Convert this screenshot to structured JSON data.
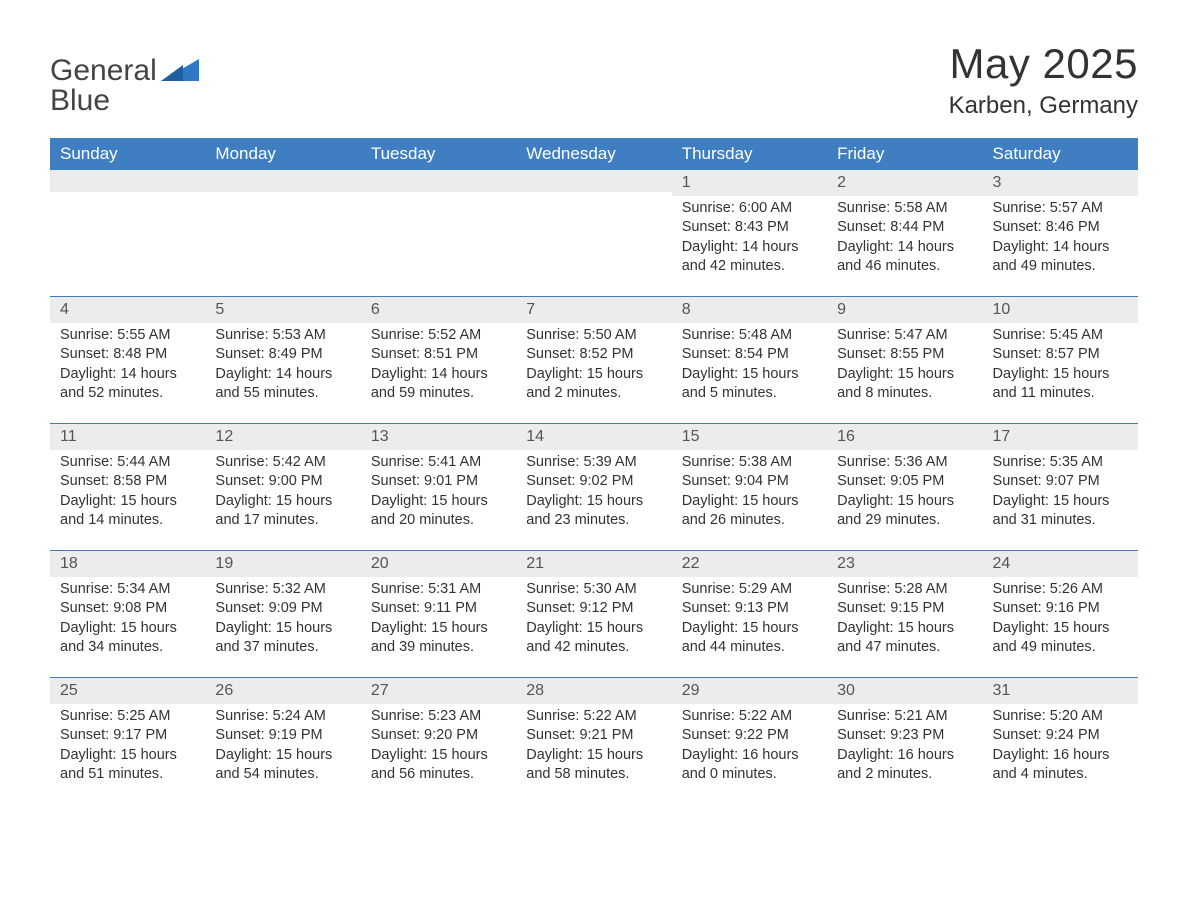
{
  "logo": {
    "text_general": "General",
    "text_blue": "Blue"
  },
  "header": {
    "month_title": "May 2025",
    "location": "Karben, Germany"
  },
  "colors": {
    "header_bg": "#3f7fc1",
    "header_text": "#ffffff",
    "day_bar_bg": "#ececec",
    "row_border": "#3f7fc1",
    "body_text": "#333333",
    "logo_blue": "#2f78c4"
  },
  "calendar": {
    "days_of_week": [
      "Sunday",
      "Monday",
      "Tuesday",
      "Wednesday",
      "Thursday",
      "Friday",
      "Saturday"
    ],
    "weeks": [
      [
        {
          "blank": true
        },
        {
          "blank": true
        },
        {
          "blank": true
        },
        {
          "blank": true
        },
        {
          "day": "1",
          "sunrise": "Sunrise: 6:00 AM",
          "sunset": "Sunset: 8:43 PM",
          "daylight": "Daylight: 14 hours and 42 minutes."
        },
        {
          "day": "2",
          "sunrise": "Sunrise: 5:58 AM",
          "sunset": "Sunset: 8:44 PM",
          "daylight": "Daylight: 14 hours and 46 minutes."
        },
        {
          "day": "3",
          "sunrise": "Sunrise: 5:57 AM",
          "sunset": "Sunset: 8:46 PM",
          "daylight": "Daylight: 14 hours and 49 minutes."
        }
      ],
      [
        {
          "day": "4",
          "sunrise": "Sunrise: 5:55 AM",
          "sunset": "Sunset: 8:48 PM",
          "daylight": "Daylight: 14 hours and 52 minutes."
        },
        {
          "day": "5",
          "sunrise": "Sunrise: 5:53 AM",
          "sunset": "Sunset: 8:49 PM",
          "daylight": "Daylight: 14 hours and 55 minutes."
        },
        {
          "day": "6",
          "sunrise": "Sunrise: 5:52 AM",
          "sunset": "Sunset: 8:51 PM",
          "daylight": "Daylight: 14 hours and 59 minutes."
        },
        {
          "day": "7",
          "sunrise": "Sunrise: 5:50 AM",
          "sunset": "Sunset: 8:52 PM",
          "daylight": "Daylight: 15 hours and 2 minutes."
        },
        {
          "day": "8",
          "sunrise": "Sunrise: 5:48 AM",
          "sunset": "Sunset: 8:54 PM",
          "daylight": "Daylight: 15 hours and 5 minutes."
        },
        {
          "day": "9",
          "sunrise": "Sunrise: 5:47 AM",
          "sunset": "Sunset: 8:55 PM",
          "daylight": "Daylight: 15 hours and 8 minutes."
        },
        {
          "day": "10",
          "sunrise": "Sunrise: 5:45 AM",
          "sunset": "Sunset: 8:57 PM",
          "daylight": "Daylight: 15 hours and 11 minutes."
        }
      ],
      [
        {
          "day": "11",
          "sunrise": "Sunrise: 5:44 AM",
          "sunset": "Sunset: 8:58 PM",
          "daylight": "Daylight: 15 hours and 14 minutes."
        },
        {
          "day": "12",
          "sunrise": "Sunrise: 5:42 AM",
          "sunset": "Sunset: 9:00 PM",
          "daylight": "Daylight: 15 hours and 17 minutes."
        },
        {
          "day": "13",
          "sunrise": "Sunrise: 5:41 AM",
          "sunset": "Sunset: 9:01 PM",
          "daylight": "Daylight: 15 hours and 20 minutes."
        },
        {
          "day": "14",
          "sunrise": "Sunrise: 5:39 AM",
          "sunset": "Sunset: 9:02 PM",
          "daylight": "Daylight: 15 hours and 23 minutes."
        },
        {
          "day": "15",
          "sunrise": "Sunrise: 5:38 AM",
          "sunset": "Sunset: 9:04 PM",
          "daylight": "Daylight: 15 hours and 26 minutes."
        },
        {
          "day": "16",
          "sunrise": "Sunrise: 5:36 AM",
          "sunset": "Sunset: 9:05 PM",
          "daylight": "Daylight: 15 hours and 29 minutes."
        },
        {
          "day": "17",
          "sunrise": "Sunrise: 5:35 AM",
          "sunset": "Sunset: 9:07 PM",
          "daylight": "Daylight: 15 hours and 31 minutes."
        }
      ],
      [
        {
          "day": "18",
          "sunrise": "Sunrise: 5:34 AM",
          "sunset": "Sunset: 9:08 PM",
          "daylight": "Daylight: 15 hours and 34 minutes."
        },
        {
          "day": "19",
          "sunrise": "Sunrise: 5:32 AM",
          "sunset": "Sunset: 9:09 PM",
          "daylight": "Daylight: 15 hours and 37 minutes."
        },
        {
          "day": "20",
          "sunrise": "Sunrise: 5:31 AM",
          "sunset": "Sunset: 9:11 PM",
          "daylight": "Daylight: 15 hours and 39 minutes."
        },
        {
          "day": "21",
          "sunrise": "Sunrise: 5:30 AM",
          "sunset": "Sunset: 9:12 PM",
          "daylight": "Daylight: 15 hours and 42 minutes."
        },
        {
          "day": "22",
          "sunrise": "Sunrise: 5:29 AM",
          "sunset": "Sunset: 9:13 PM",
          "daylight": "Daylight: 15 hours and 44 minutes."
        },
        {
          "day": "23",
          "sunrise": "Sunrise: 5:28 AM",
          "sunset": "Sunset: 9:15 PM",
          "daylight": "Daylight: 15 hours and 47 minutes."
        },
        {
          "day": "24",
          "sunrise": "Sunrise: 5:26 AM",
          "sunset": "Sunset: 9:16 PM",
          "daylight": "Daylight: 15 hours and 49 minutes."
        }
      ],
      [
        {
          "day": "25",
          "sunrise": "Sunrise: 5:25 AM",
          "sunset": "Sunset: 9:17 PM",
          "daylight": "Daylight: 15 hours and 51 minutes."
        },
        {
          "day": "26",
          "sunrise": "Sunrise: 5:24 AM",
          "sunset": "Sunset: 9:19 PM",
          "daylight": "Daylight: 15 hours and 54 minutes."
        },
        {
          "day": "27",
          "sunrise": "Sunrise: 5:23 AM",
          "sunset": "Sunset: 9:20 PM",
          "daylight": "Daylight: 15 hours and 56 minutes."
        },
        {
          "day": "28",
          "sunrise": "Sunrise: 5:22 AM",
          "sunset": "Sunset: 9:21 PM",
          "daylight": "Daylight: 15 hours and 58 minutes."
        },
        {
          "day": "29",
          "sunrise": "Sunrise: 5:22 AM",
          "sunset": "Sunset: 9:22 PM",
          "daylight": "Daylight: 16 hours and 0 minutes."
        },
        {
          "day": "30",
          "sunrise": "Sunrise: 5:21 AM",
          "sunset": "Sunset: 9:23 PM",
          "daylight": "Daylight: 16 hours and 2 minutes."
        },
        {
          "day": "31",
          "sunrise": "Sunrise: 5:20 AM",
          "sunset": "Sunset: 9:24 PM",
          "daylight": "Daylight: 16 hours and 4 minutes."
        }
      ]
    ]
  }
}
